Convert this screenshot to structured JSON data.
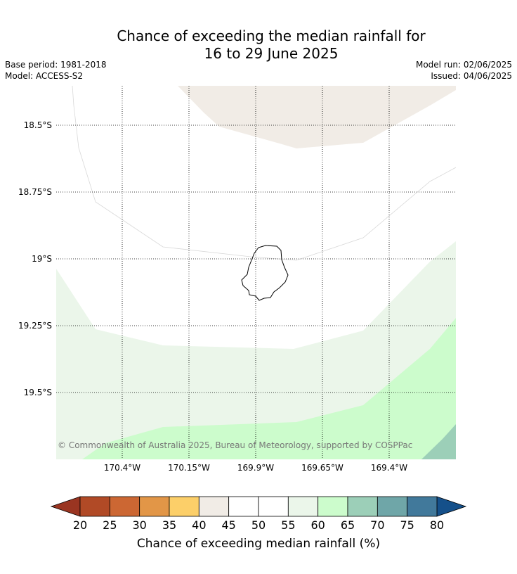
{
  "title_line1": "Chance of exceeding the median rainfall for",
  "title_line2": "16 to 29 June 2025",
  "base_period": "Base period: 1981-2018",
  "model": "Model: ACCESS-S2",
  "model_run": "Model run: 02/06/2025",
  "issued": "Issued: 04/06/2025",
  "map": {
    "lat_ticks": [
      "18.5°S",
      "18.75°S",
      "19°S",
      "19.25°S",
      "19.5°S"
    ],
    "lon_ticks": [
      "170.4°W",
      "170.15°W",
      "169.9°W",
      "169.65°W",
      "169.4°W"
    ],
    "copyright": "© Commonwealth of Australia 2025, Bureau of Meteorology, supported by COSPPac",
    "island": "Niue"
  },
  "colorbar": {
    "title": "Chance of exceeding median rainfall (%)",
    "labels": [
      "20",
      "25",
      "30",
      "35",
      "40",
      "45",
      "50",
      "55",
      "60",
      "65",
      "70",
      "75",
      "80"
    ],
    "colors": [
      "#9a3521",
      "#b14a26",
      "#cc6733",
      "#e29647",
      "#fccf69",
      "#f1ece6",
      "#ffffff",
      "#ffffff",
      "#ebf6ea",
      "#ccfccc",
      "#9ccfb8",
      "#6fa6a8",
      "#41799b",
      "#15508a"
    ]
  }
}
